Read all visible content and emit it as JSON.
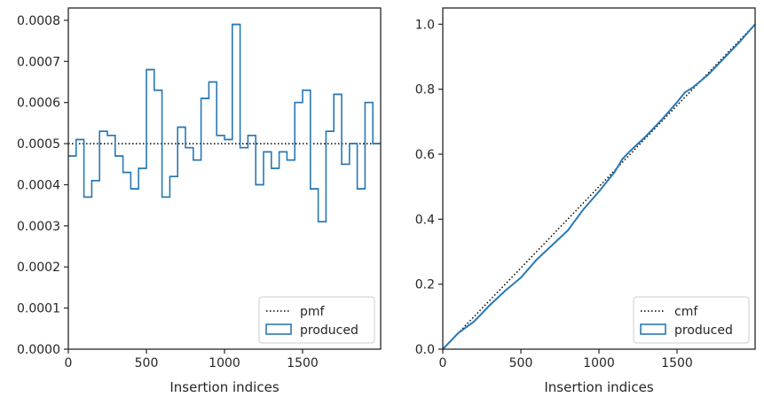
{
  "chart_data": [
    {
      "type": "step-histogram",
      "xlabel": "Insertion indices",
      "ylabel": "",
      "xlim": [
        0,
        2000
      ],
      "ylim": [
        0,
        0.00083
      ],
      "x_ticks": [
        0,
        500,
        1000,
        1500
      ],
      "x_tick_labels": [
        "0",
        "500",
        "1000",
        "1500"
      ],
      "y_ticks": [
        0,
        0.0001,
        0.0002,
        0.0003,
        0.0004,
        0.0005,
        0.0006,
        0.0007,
        0.0008
      ],
      "y_tick_labels": [
        "0.0000",
        "0.0001",
        "0.0002",
        "0.0003",
        "0.0004",
        "0.0005",
        "0.0006",
        "0.0007",
        "0.0008"
      ],
      "legend_position": "bottom-right",
      "reference": {
        "name": "pmf",
        "style": "dotted",
        "color": "#000000",
        "y": 0.0005
      },
      "series": [
        {
          "name": "produced",
          "color": "#2878b5",
          "bin_edges": [
            0,
            50,
            100,
            150,
            200,
            250,
            300,
            350,
            400,
            450,
            500,
            550,
            600,
            650,
            700,
            750,
            800,
            850,
            900,
            950,
            1000,
            1050,
            1100,
            1150,
            1200,
            1250,
            1300,
            1350,
            1400,
            1450,
            1500,
            1550,
            1600,
            1650,
            1700,
            1750,
            1800,
            1850,
            1900,
            1950,
            2000
          ],
          "values": [
            0.00047,
            0.00051,
            0.00037,
            0.00041,
            0.00053,
            0.00052,
            0.00047,
            0.00043,
            0.00039,
            0.00044,
            0.00068,
            0.00063,
            0.00037,
            0.00042,
            0.00054,
            0.00049,
            0.00046,
            0.00061,
            0.00065,
            0.00052,
            0.00051,
            0.00079,
            0.00049,
            0.00052,
            0.0004,
            0.00048,
            0.00044,
            0.00048,
            0.00046,
            0.0006,
            0.00063,
            0.00039,
            0.00031,
            0.00053,
            0.00062,
            0.00045,
            0.0005,
            0.00039,
            0.0006,
            0.0005
          ]
        }
      ]
    },
    {
      "type": "line",
      "xlabel": "Insertion indices",
      "ylabel": "",
      "xlim": [
        0,
        2000
      ],
      "ylim": [
        0,
        1.05
      ],
      "x_ticks": [
        0,
        500,
        1000,
        1500
      ],
      "x_tick_labels": [
        "0",
        "500",
        "1000",
        "1500"
      ],
      "y_ticks": [
        0,
        0.2,
        0.4,
        0.6,
        0.8,
        1.0
      ],
      "y_tick_labels": [
        "0.0",
        "0.2",
        "0.4",
        "0.6",
        "0.8",
        "1.0"
      ],
      "legend_position": "bottom-right",
      "reference": {
        "name": "cmf",
        "style": "dotted",
        "color": "#000000",
        "x": [
          0,
          2000
        ],
        "y": [
          0,
          1.0
        ]
      },
      "series": [
        {
          "name": "produced",
          "color": "#2878b5",
          "x": [
            0,
            100,
            200,
            300,
            400,
            500,
            600,
            700,
            800,
            900,
            1000,
            1100,
            1150,
            1200,
            1300,
            1400,
            1500,
            1550,
            1600,
            1700,
            1800,
            1900,
            2000
          ],
          "y": [
            0,
            0.05,
            0.085,
            0.135,
            0.18,
            0.22,
            0.275,
            0.32,
            0.365,
            0.43,
            0.485,
            0.545,
            0.585,
            0.61,
            0.655,
            0.705,
            0.76,
            0.79,
            0.805,
            0.845,
            0.895,
            0.945,
            1.0
          ]
        }
      ]
    }
  ]
}
